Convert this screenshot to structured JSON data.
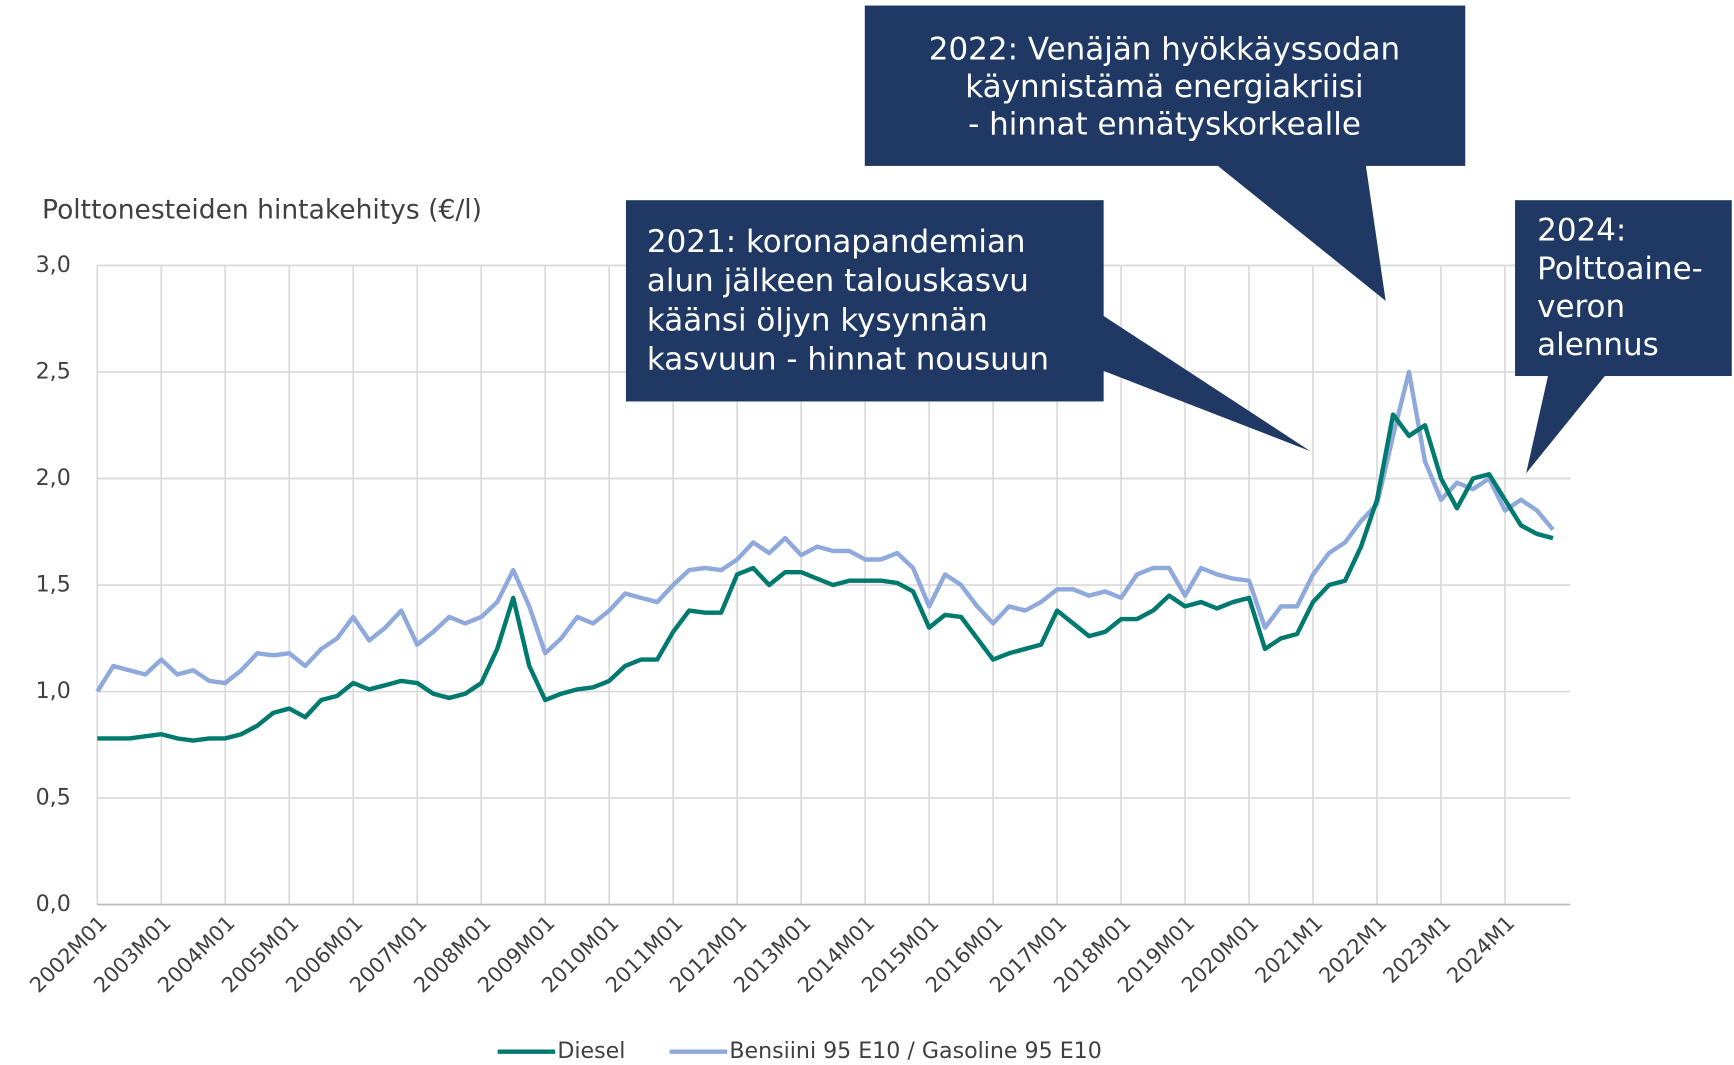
{
  "chart_data": {
    "type": "line",
    "y_axis_title": "Polttonesteiden hintakehitys (€/l)",
    "categories": [
      "2002M01",
      null,
      null,
      null,
      "2003M01",
      null,
      null,
      null,
      "2004M01",
      null,
      null,
      null,
      "2005M01",
      null,
      null,
      null,
      "2006M01",
      null,
      null,
      null,
      "2007M01",
      null,
      null,
      null,
      "2008M01",
      null,
      null,
      null,
      "2009M01",
      null,
      null,
      null,
      "2010M01",
      null,
      null,
      null,
      "2011M01",
      null,
      null,
      null,
      "2012M01",
      null,
      null,
      null,
      "2013M01",
      null,
      null,
      null,
      "2014M01",
      null,
      null,
      null,
      "2015M01",
      null,
      null,
      null,
      "2016M01",
      null,
      null,
      null,
      "2017M01",
      null,
      null,
      null,
      "2018M01",
      null,
      null,
      null,
      "2019M01",
      null,
      null,
      null,
      "2020M01",
      null,
      null,
      null,
      "2021M1",
      null,
      null,
      null,
      "2022M1",
      null,
      null,
      null,
      "2023M1",
      null,
      null,
      null,
      "2024M1",
      null,
      null,
      null
    ],
    "series": [
      {
        "name": "Diesel",
        "color": "#007a6e",
        "values": [
          0.78,
          0.78,
          0.78,
          0.79,
          0.8,
          0.78,
          0.77,
          0.78,
          0.78,
          0.8,
          0.84,
          0.9,
          0.92,
          0.88,
          0.96,
          0.98,
          1.04,
          1.01,
          1.03,
          1.05,
          1.04,
          0.99,
          0.97,
          0.99,
          1.04,
          1.2,
          1.44,
          1.12,
          0.96,
          0.99,
          1.01,
          1.02,
          1.05,
          1.12,
          1.15,
          1.15,
          1.28,
          1.38,
          1.37,
          1.37,
          1.55,
          1.58,
          1.5,
          1.56,
          1.56,
          1.53,
          1.5,
          1.52,
          1.52,
          1.52,
          1.51,
          1.47,
          1.3,
          1.36,
          1.35,
          1.25,
          1.15,
          1.18,
          1.2,
          1.22,
          1.38,
          1.32,
          1.26,
          1.28,
          1.34,
          1.34,
          1.38,
          1.45,
          1.4,
          1.42,
          1.39,
          1.42,
          1.44,
          1.2,
          1.25,
          1.27,
          1.42,
          1.5,
          1.52,
          1.68,
          1.9,
          2.3,
          2.2,
          2.25,
          2.0,
          1.86,
          2.0,
          2.02,
          1.9,
          1.78,
          1.74,
          1.72
        ]
      },
      {
        "name": "Bensiini 95 E10 / Gasoline 95 E10",
        "color": "#8fa9dc",
        "values": [
          1.0,
          1.12,
          1.1,
          1.08,
          1.15,
          1.08,
          1.1,
          1.05,
          1.04,
          1.1,
          1.18,
          1.17,
          1.18,
          1.12,
          1.2,
          1.25,
          1.35,
          1.24,
          1.3,
          1.38,
          1.22,
          1.28,
          1.35,
          1.32,
          1.35,
          1.42,
          1.57,
          1.4,
          1.18,
          1.25,
          1.35,
          1.32,
          1.38,
          1.46,
          1.44,
          1.42,
          1.5,
          1.57,
          1.58,
          1.57,
          1.62,
          1.7,
          1.65,
          1.72,
          1.64,
          1.68,
          1.66,
          1.66,
          1.62,
          1.62,
          1.65,
          1.58,
          1.4,
          1.55,
          1.5,
          1.4,
          1.32,
          1.4,
          1.38,
          1.42,
          1.48,
          1.48,
          1.45,
          1.47,
          1.44,
          1.55,
          1.58,
          1.58,
          1.45,
          1.58,
          1.55,
          1.53,
          1.52,
          1.3,
          1.4,
          1.4,
          1.55,
          1.65,
          1.7,
          1.8,
          1.88,
          2.2,
          2.5,
          2.08,
          1.9,
          1.98,
          1.95,
          2.0,
          1.85,
          1.9,
          1.85,
          1.76
        ]
      }
    ],
    "ylim": [
      0,
      3
    ],
    "yticks": [
      {
        "value": 0,
        "label": "0,0"
      },
      {
        "value": 0.5,
        "label": "0,5"
      },
      {
        "value": 1,
        "label": "1,0"
      },
      {
        "value": 1.5,
        "label": "1,5"
      },
      {
        "value": 2,
        "label": "2,0"
      },
      {
        "value": 2.5,
        "label": "2,5"
      },
      {
        "value": 3,
        "label": "3,0"
      }
    ],
    "grid": true,
    "legend": "bottom",
    "annotations": [
      {
        "lines": [
          "2022: Venäjän hyökkäyssodan",
          "käynnistämä energiakriisi",
          "- hinnat ennätyskorkealle"
        ]
      },
      {
        "lines": [
          "2021: koronapandemian",
          "alun jälkeen talouskasvu",
          "käänsi öljyn kysynnän",
          "kasvuun - hinnat nousuun"
        ]
      },
      {
        "lines": [
          "2024:",
          "Polttoaine-",
          "veron",
          "alennus"
        ]
      }
    ]
  }
}
